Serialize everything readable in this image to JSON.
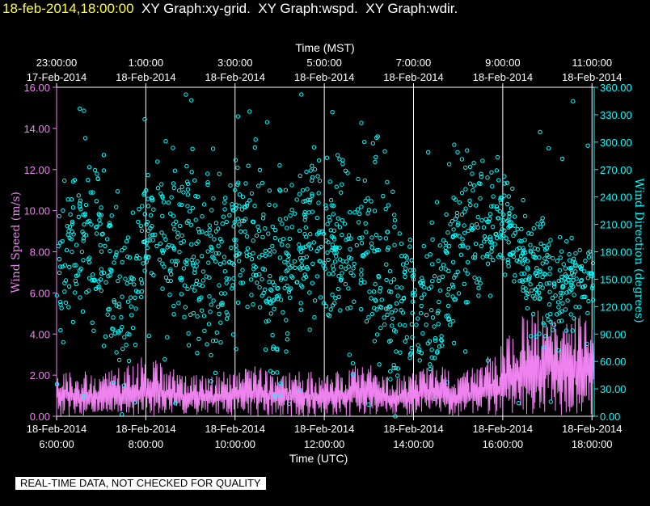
{
  "header": {
    "timestamp": "18-feb-2014,18:00:00",
    "graph_titles": [
      "XY Graph:xy-grid.",
      "XY Graph:wspd.",
      "XY Graph:wdir."
    ]
  },
  "notice": "REAL-TIME DATA, NOT CHECKED FOR QUALITY",
  "colors": {
    "background": "#000000",
    "timestamp": "#ffff33",
    "wind_speed": "#ee82ee",
    "wind_direction": "#00ffff",
    "axes": "#ffffff"
  },
  "chart_data": {
    "type": "scatter",
    "grid": true,
    "top_axis": {
      "label": "Time (MST)",
      "ticks": [
        {
          "time": "23:00:00",
          "date": "17-Feb-2014"
        },
        {
          "time": "1:00:00",
          "date": "18-Feb-2014"
        },
        {
          "time": "3:00:00",
          "date": "18-Feb-2014"
        },
        {
          "time": "5:00:00",
          "date": "18-Feb-2014"
        },
        {
          "time": "7:00:00",
          "date": "18-Feb-2014"
        },
        {
          "time": "9:00:00",
          "date": "18-Feb-2014"
        },
        {
          "time": "11:00:00",
          "date": "18-Feb-2014"
        }
      ]
    },
    "bottom_axis": {
      "label": "Time (UTC)",
      "ticks": [
        {
          "date": "18-Feb-2014",
          "time": "6:00:00"
        },
        {
          "date": "18-Feb-2014",
          "time": "8:00:00"
        },
        {
          "date": "18-Feb-2014",
          "time": "10:00:00"
        },
        {
          "date": "18-Feb-2014",
          "time": "12:00:00"
        },
        {
          "date": "18-Feb-2014",
          "time": "14:00:00"
        },
        {
          "date": "18-Feb-2014",
          "time": "16:00:00"
        },
        {
          "date": "18-Feb-2014",
          "time": "18:00:00"
        }
      ],
      "xlim_hours_utc": [
        6,
        18.05
      ]
    },
    "left_axis": {
      "label": "Wind Speed (m/s)",
      "ylim": [
        0,
        16
      ],
      "ticks": [
        "0.00",
        "2.00",
        "4.00",
        "6.00",
        "8.00",
        "10.00",
        "12.00",
        "14.00",
        "16.00"
      ]
    },
    "right_axis": {
      "label": "Wind Direction (degrees)",
      "ylim": [
        0,
        360
      ],
      "ticks": [
        "0.00",
        "30.00",
        "60.00",
        "90.00",
        "120.00",
        "150.00",
        "180.00",
        "210.00",
        "240.00",
        "270.00",
        "300.00",
        "330.00",
        "360.00"
      ]
    },
    "series": [
      {
        "name": "Wind Speed",
        "axis": "left",
        "style": "line",
        "x_hours_utc": [
          6.0,
          6.5,
          7.0,
          7.5,
          8.0,
          8.5,
          9.0,
          9.5,
          10.0,
          10.5,
          11.0,
          11.5,
          12.0,
          12.5,
          13.0,
          13.5,
          14.0,
          14.5,
          15.0,
          15.5,
          16.0,
          16.5,
          17.0,
          17.5,
          18.0
        ],
        "mean": [
          1.3,
          1.0,
          1.2,
          1.1,
          1.3,
          1.2,
          1.0,
          1.0,
          1.1,
          1.2,
          1.0,
          1.1,
          1.0,
          1.2,
          1.3,
          0.9,
          1.2,
          1.3,
          1.0,
          1.2,
          1.5,
          2.6,
          2.8,
          2.5,
          2.8
        ],
        "peak": [
          2.1,
          2.3,
          2.0,
          2.5,
          3.0,
          2.4,
          2.0,
          2.1,
          2.3,
          2.5,
          2.0,
          2.3,
          2.0,
          2.4,
          2.6,
          1.8,
          2.2,
          2.6,
          2.0,
          2.6,
          3.5,
          5.3,
          5.1,
          4.8,
          5.0
        ]
      },
      {
        "name": "Wind Direction",
        "axis": "right",
        "style": "markers",
        "x_hours_utc": [
          6.0,
          6.5,
          7.0,
          7.5,
          8.0,
          8.5,
          9.0,
          9.5,
          10.0,
          10.5,
          11.0,
          11.5,
          12.0,
          12.5,
          13.0,
          13.5,
          14.0,
          14.5,
          15.0,
          15.5,
          16.0,
          16.5,
          17.0,
          17.5,
          18.0
        ],
        "center": [
          170,
          200,
          190,
          110,
          220,
          200,
          190,
          160,
          200,
          180,
          140,
          210,
          200,
          180,
          190,
          150,
          100,
          120,
          190,
          200,
          220,
          160,
          150,
          145,
          150
        ],
        "spread": [
          60,
          50,
          60,
          60,
          40,
          50,
          60,
          70,
          50,
          60,
          70,
          50,
          50,
          60,
          60,
          70,
          50,
          60,
          60,
          50,
          30,
          30,
          40,
          30,
          20
        ]
      }
    ]
  }
}
